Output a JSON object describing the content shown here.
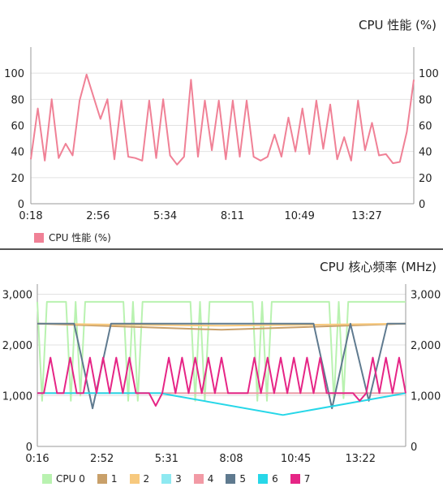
{
  "chart_data": [
    {
      "type": "line",
      "title": "CPU 性能 (%)",
      "xlabel": "",
      "ylabel": "",
      "x_tick_labels": [
        "0:18",
        "2:56",
        "5:34",
        "8:11",
        "10:49",
        "13:27"
      ],
      "y_ticks": [
        0,
        20,
        40,
        60,
        80,
        100
      ],
      "ylim": [
        0,
        120
      ],
      "grid": "horizontal",
      "legend_placement": "bottom-left",
      "series": [
        {
          "name": "CPU 性能 (%)",
          "color": "#f08196",
          "values": [
            34,
            73,
            33,
            80,
            35,
            46,
            37,
            79,
            99,
            82,
            65,
            80,
            34,
            79,
            36,
            35,
            33,
            79,
            35,
            80,
            37,
            30,
            36,
            95,
            36,
            79,
            41,
            79,
            34,
            79,
            36,
            79,
            36,
            33,
            36,
            53,
            36,
            66,
            40,
            73,
            38,
            79,
            42,
            76,
            34,
            51,
            33,
            79,
            41,
            62,
            37,
            38,
            31,
            32,
            55,
            95
          ]
        }
      ]
    },
    {
      "type": "line",
      "title": "CPU 核心频率 (MHz)",
      "xlabel": "",
      "ylabel": "",
      "x_tick_labels": [
        "0:16",
        "2:52",
        "5:31",
        "8:08",
        "10:45",
        "13:22"
      ],
      "y_ticks": [
        0,
        1000,
        2000,
        3000
      ],
      "y_tick_labels": [
        "0",
        "1,000",
        "2,000",
        "3,000"
      ],
      "ylim": [
        0,
        3200
      ],
      "grid": "horizontal",
      "legend_placement": "bottom",
      "legend": [
        "CPU 0",
        "1",
        "2",
        "3",
        "4",
        "5",
        "6",
        "7"
      ],
      "series": [
        {
          "name": "CPU 0",
          "color": "#b9f2b0",
          "dash": "dashed-top",
          "values": [
            2850,
            900,
            2850,
            2850,
            2850,
            2850,
            2850,
            900,
            2850,
            1000,
            2850,
            2850,
            2850,
            2850,
            2850,
            2850,
            2850,
            2850,
            2850,
            900,
            2850,
            900,
            2850,
            2850,
            2850,
            2850,
            2850,
            2850,
            2850,
            2850,
            2850,
            2850,
            2850,
            900,
            2850,
            900,
            2850,
            2850,
            2850,
            2850,
            2850,
            2850,
            2850,
            2850,
            2850,
            2850,
            900,
            2850,
            900,
            2850,
            2850,
            2850,
            2850,
            2850,
            2850,
            2850,
            2850,
            2850,
            2850,
            2850,
            2850,
            2850,
            900,
            2850,
            950,
            2850,
            2850,
            2850,
            2850,
            2850,
            2850,
            2850,
            2850,
            2850,
            2850,
            2850,
            2850,
            2850
          ]
        },
        {
          "name": "1",
          "color": "#c9a06a",
          "values": [
            2420,
            2300,
            2420
          ]
        },
        {
          "name": "2",
          "color": "#f7c97e",
          "values": [
            2420,
            2380,
            2420
          ]
        },
        {
          "name": "3",
          "color": "#8ee9f1",
          "values": [
            1050,
            1050,
            1050
          ]
        },
        {
          "name": "4",
          "color": "#f29aa5",
          "values": [
            1050,
            1050,
            1050
          ]
        },
        {
          "name": "5",
          "color": "#5f7a8f",
          "values": [
            2420,
            2420,
            2420,
            750,
            2420,
            2420,
            2420,
            2420,
            2420,
            2420,
            2420,
            2420,
            2420,
            2420,
            2420,
            2420,
            750,
            2420,
            900,
            2420,
            2420
          ]
        },
        {
          "name": "6",
          "color": "#27d7e8",
          "values": [
            1050,
            1050,
            620,
            1050
          ]
        },
        {
          "name": "7",
          "color": "#e62586",
          "values": [
            1050,
            1050,
            1750,
            1050,
            1050,
            1750,
            1050,
            1050,
            1750,
            1050,
            1750,
            1050,
            1750,
            1050,
            1750,
            1050,
            1050,
            1050,
            800,
            1050,
            1750,
            1050,
            1750,
            1050,
            1750,
            1050,
            1750,
            1050,
            1750,
            1050,
            1050,
            1050,
            1050,
            1750,
            1050,
            1750,
            1050,
            1750,
            1050,
            1750,
            1050,
            1750,
            1050,
            1750,
            1050,
            1050,
            1050,
            1050,
            1050,
            900,
            1050,
            1750,
            1050,
            1750,
            1050,
            1750,
            1050
          ]
        }
      ]
    }
  ]
}
